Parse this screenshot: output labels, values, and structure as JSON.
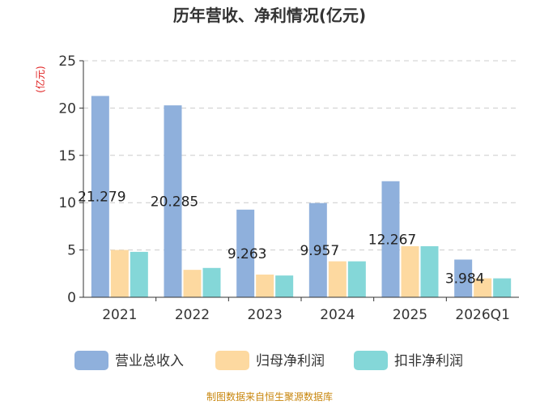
{
  "colors": {
    "revenue": "#8fb0dc",
    "net_profit": "#fdd9a0",
    "deducted_profit": "#84d7d8",
    "grid": "#cccccc",
    "axis": "#333333",
    "unit": "#e02020",
    "source": "#c8860d"
  },
  "chart_data": {
    "type": "bar",
    "title": "历年营收、净利情况(亿元)",
    "ylabel": "(亿元)",
    "xlabel": "",
    "ylim": [
      0,
      25
    ],
    "yticks": [
      0,
      5,
      10,
      15,
      20,
      25
    ],
    "grid": true,
    "legend_position": "bottom",
    "categories": [
      "2021",
      "2022",
      "2023",
      "2024",
      "2025",
      "2026Q1"
    ],
    "series": [
      {
        "name": "营业总收入",
        "values": [
          21.279,
          20.285,
          9.263,
          9.957,
          12.267,
          3.984
        ]
      },
      {
        "name": "归母净利润",
        "values": [
          5.0,
          2.9,
          2.4,
          3.8,
          5.4,
          2.0
        ]
      },
      {
        "name": "扣非净利润",
        "values": [
          4.8,
          3.1,
          2.3,
          3.8,
          5.4,
          2.0
        ]
      }
    ],
    "data_labels": [
      "21.279",
      "20.285",
      "9.263",
      "9.957",
      "12.267",
      "3.984"
    ],
    "source": "制图数据来自恒生聚源数据库"
  }
}
